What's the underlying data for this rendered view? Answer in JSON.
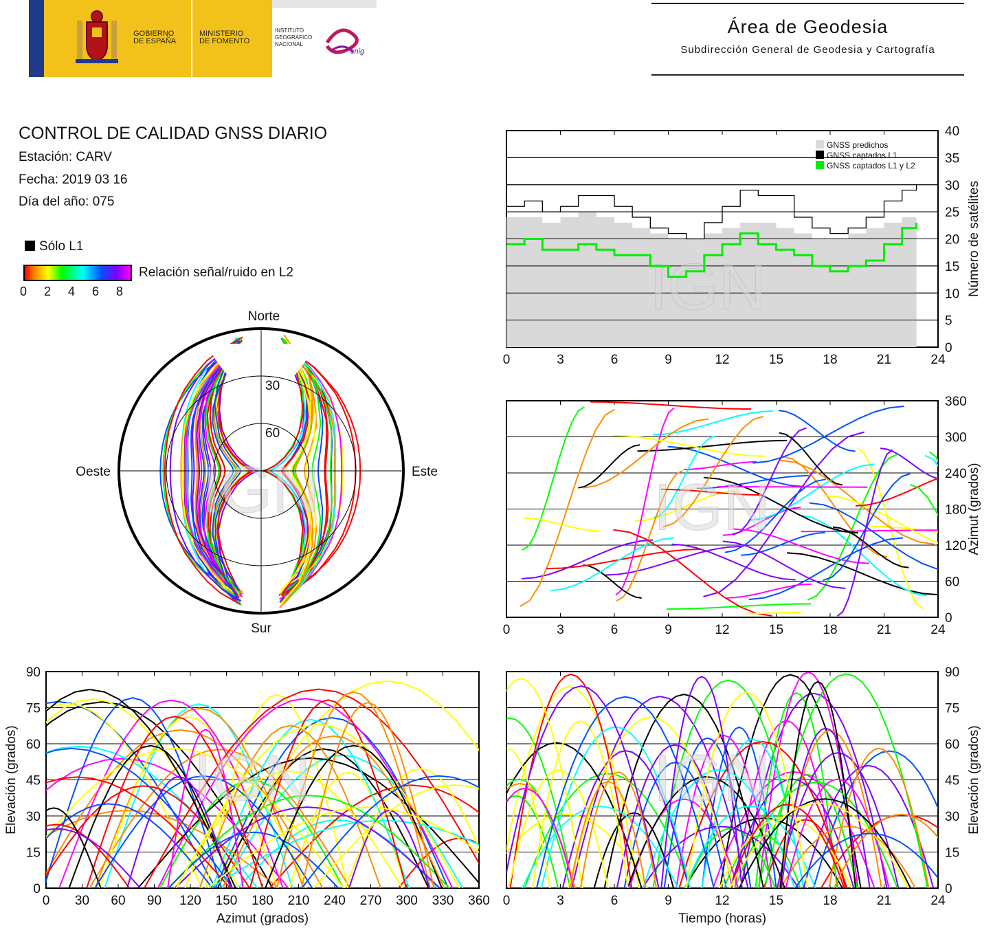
{
  "header": {
    "gobierno": [
      "GOBIERNO",
      "DE ESPAÑA"
    ],
    "ministerio": [
      "MINISTERIO",
      "DE FOMENTO"
    ],
    "instituto": [
      "INSTITUTO",
      "GEOGRÁFICO",
      "NACIONAL"
    ],
    "cnig": "cnig",
    "area_title": "Área de Geodesia",
    "area_subtitle": "Subdirección General de Geodesia y Cartografía"
  },
  "report": {
    "title": "CONTROL DE CALIDAD GNSS DIARIO",
    "station": "Estación: CARV",
    "date": "Fecha: 2019 03 16",
    "doy": "Día del año: 075"
  },
  "legend": {
    "l1_only": "Sólo L1",
    "snr_label": "Relación señal/ruido en L2",
    "snr_ticks": [
      "0",
      "2",
      "4",
      "6",
      "8"
    ]
  },
  "watermark": "IGN",
  "colors": {
    "l1": "#000000",
    "predicted": "#d9d9d9",
    "l1l2": "#00ee00",
    "snr_scale": [
      "#ff0000",
      "#ff8c00",
      "#ffff00",
      "#00ff00",
      "#00ffff",
      "#0050ff",
      "#7f00ff",
      "#ff00ff"
    ]
  },
  "chart_data": [
    {
      "type": "area",
      "id": "satellites",
      "ylabel": "Número de satélites",
      "xlim": [
        0,
        24
      ],
      "ylim": [
        0,
        40
      ],
      "xticks": [
        "0",
        "3",
        "6",
        "9",
        "12",
        "15",
        "18",
        "21",
        "24"
      ],
      "yticks": [
        "0",
        "5",
        "10",
        "15",
        "20",
        "25",
        "30",
        "35",
        "40"
      ],
      "grid": true,
      "legend_position": "top-right",
      "x": [
        0,
        1,
        2,
        3,
        4,
        5,
        6,
        7,
        8,
        9,
        10,
        11,
        12,
        13,
        14,
        15,
        16,
        17,
        18,
        19,
        20,
        21,
        22,
        22.8
      ],
      "series": [
        {
          "name": "GNSS predichos",
          "values": [
            24,
            24,
            23,
            24,
            25,
            24,
            23,
            22,
            21,
            20,
            20,
            21,
            22,
            23,
            23,
            22,
            21,
            20,
            20,
            21,
            22,
            23,
            24,
            24
          ]
        },
        {
          "name": "GNSS captados L1",
          "values": [
            26,
            27,
            25,
            26,
            28,
            28,
            26,
            24,
            22,
            21,
            20,
            23,
            26,
            29,
            28,
            28,
            24,
            22,
            21,
            22,
            24,
            27,
            29,
            30
          ]
        },
        {
          "name": "GNSS captados L1 y L2",
          "values": [
            19,
            20,
            18,
            18,
            19,
            18,
            17,
            17,
            15,
            13,
            14,
            17,
            19,
            21,
            19,
            18,
            17,
            15,
            14,
            15,
            16,
            19,
            22,
            23
          ]
        }
      ]
    },
    {
      "type": "scatter",
      "id": "skyplot",
      "directions": {
        "north": "Norte",
        "south": "Sur",
        "east": "Este",
        "west": "Oeste"
      },
      "elevation_rings": [
        "30",
        "60"
      ]
    },
    {
      "type": "scatter",
      "id": "azimuth_time",
      "ylabel": "Azimut (grados)",
      "xlim": [
        0,
        24
      ],
      "ylim": [
        0,
        360
      ],
      "xticks": [
        "0",
        "3",
        "6",
        "9",
        "12",
        "15",
        "18",
        "21",
        "24"
      ],
      "yticks": [
        "0",
        "60",
        "120",
        "180",
        "240",
        "300",
        "360"
      ],
      "grid": true
    },
    {
      "type": "scatter",
      "id": "elev_azimuth",
      "xlabel": "Azimut (grados)",
      "ylabel": "Elevación (grados)",
      "xlim": [
        0,
        360
      ],
      "ylim": [
        0,
        90
      ],
      "xticks": [
        "0",
        "30",
        "60",
        "90",
        "120",
        "150",
        "180",
        "210",
        "240",
        "270",
        "300",
        "330",
        "360"
      ],
      "yticks": [
        "0",
        "15",
        "30",
        "45",
        "60",
        "75",
        "90"
      ],
      "grid": true
    },
    {
      "type": "scatter",
      "id": "elev_time",
      "xlabel": "Tiempo (horas)",
      "ylabel": "Elevación (grados)",
      "xlim": [
        0,
        24
      ],
      "ylim": [
        0,
        90
      ],
      "xticks": [
        "0",
        "3",
        "6",
        "9",
        "12",
        "15",
        "18",
        "21",
        "24"
      ],
      "yticks": [
        "0",
        "15",
        "30",
        "45",
        "60",
        "75",
        "90"
      ],
      "grid": true
    }
  ]
}
